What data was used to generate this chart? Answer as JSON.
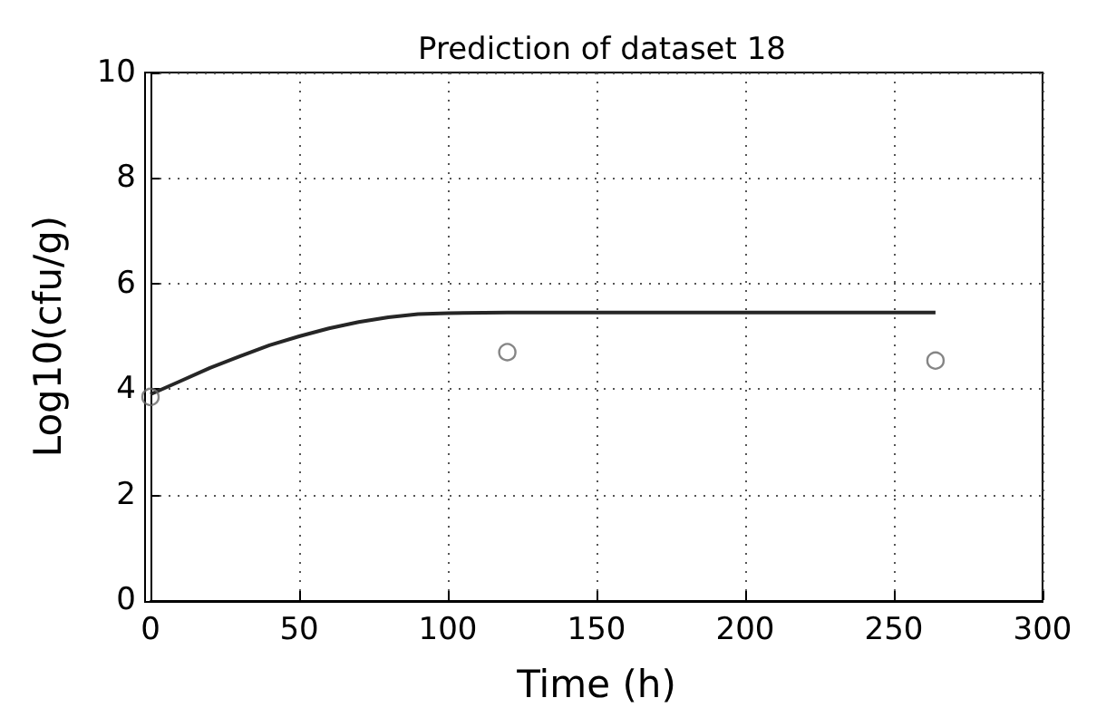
{
  "chart_data": {
    "type": "line",
    "title": "Prediction of dataset 18",
    "xlabel": "Time (h)",
    "ylabel": "Log10(cfu/g)",
    "xlim": [
      0,
      300
    ],
    "xticks": [
      0,
      50,
      100,
      150,
      200,
      250,
      300
    ],
    "ylim": [
      0,
      10
    ],
    "yticks": [
      0,
      2,
      4,
      6,
      8,
      10
    ],
    "grid": true,
    "series": [
      {
        "color": "#262626",
        "marker": "none",
        "x": [
          0,
          10,
          20,
          30,
          40,
          50,
          60,
          70,
          80,
          90,
          100,
          120,
          150,
          200,
          264
        ],
        "values": [
          3.9,
          4.15,
          4.4,
          4.62,
          4.83,
          5.0,
          5.15,
          5.27,
          5.36,
          5.42,
          5.44,
          5.45,
          5.45,
          5.45,
          5.45
        ]
      },
      {
        "type": "scatter",
        "color": "#666666",
        "marker": "circle",
        "x": [
          0,
          120,
          264
        ],
        "values": [
          3.85,
          4.7,
          4.54
        ]
      }
    ]
  }
}
